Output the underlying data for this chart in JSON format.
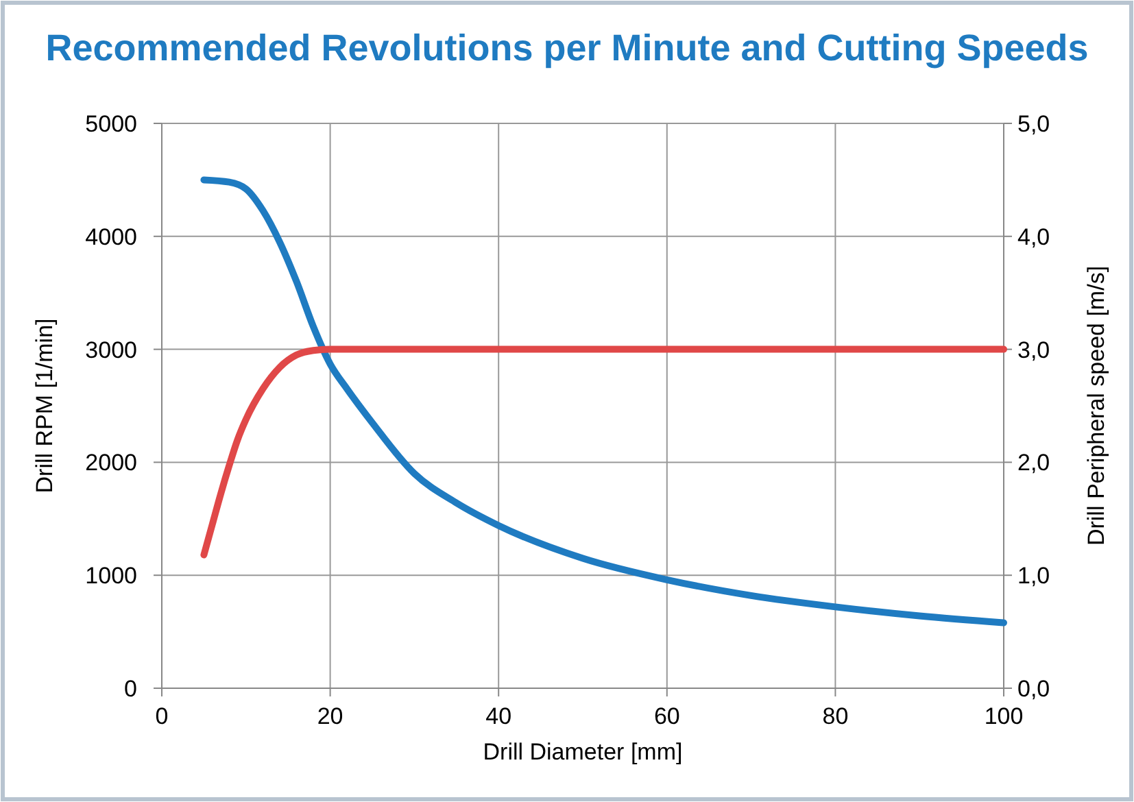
{
  "chart_data": {
    "type": "line",
    "title": "Recommended Revolutions per Minute and Cutting Speeds",
    "xlabel": "Drill Diameter [mm]",
    "ylabel": "Drill RPM [1/min]",
    "y2label": "Drill Peripheral speed [m/s]",
    "xlim": [
      0,
      100
    ],
    "xticks": [
      0,
      20,
      40,
      60,
      80,
      100
    ],
    "ylim": [
      0,
      5000
    ],
    "yticks": [
      0,
      1000,
      2000,
      3000,
      4000,
      5000
    ],
    "y2lim": [
      0,
      5
    ],
    "y2ticks": [
      {
        "value": 0,
        "label": "0,0"
      },
      {
        "value": 1,
        "label": "1,0"
      },
      {
        "value": 2,
        "label": "2,0"
      },
      {
        "value": 3,
        "label": "3,0"
      },
      {
        "value": 4,
        "label": "4,0"
      },
      {
        "value": 5,
        "label": "5,0"
      }
    ],
    "grid": true,
    "marker": "none",
    "line_style": "solid",
    "series": [
      {
        "color": "#1f7bc1",
        "x": [
          5,
          8,
          10,
          12,
          14,
          16,
          18,
          20,
          22,
          25,
          30,
          35,
          40,
          50,
          60,
          70,
          80,
          90,
          100
        ],
        "values": [
          4500,
          4480,
          4420,
          4230,
          3950,
          3600,
          3200,
          2870,
          2650,
          2350,
          1900,
          1640,
          1440,
          1150,
          960,
          820,
          720,
          640,
          580
        ]
      },
      {
        "color": "#e04848",
        "axis": "y2",
        "x": [
          5,
          6,
          7,
          8,
          9,
          10,
          12,
          14,
          16,
          18,
          20,
          100
        ],
        "values": [
          1.18,
          1.45,
          1.72,
          1.97,
          2.2,
          2.38,
          2.65,
          2.84,
          2.95,
          2.99,
          3.0,
          3.0
        ]
      }
    ]
  }
}
